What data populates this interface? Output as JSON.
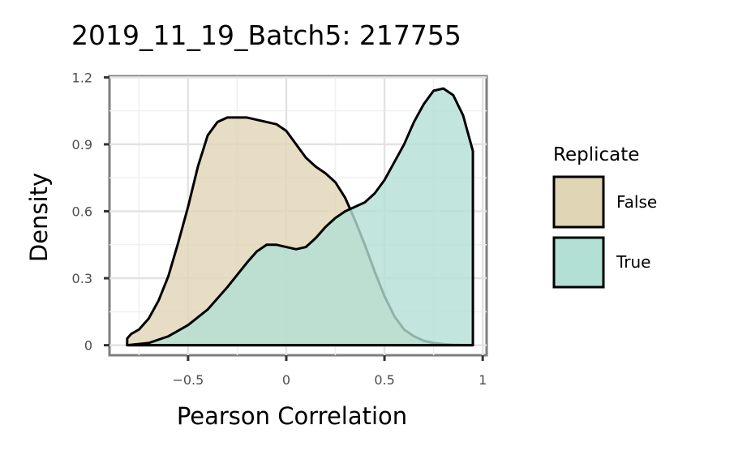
{
  "chart_data": {
    "type": "area",
    "title": "2019_11_19_Batch5: 217755",
    "xlabel": "Pearson Correlation",
    "ylabel": "Density",
    "xlim": [
      -0.9,
      1.02
    ],
    "ylim": [
      -0.045,
      1.205
    ],
    "x_ticks": [
      -0.5,
      0,
      0.5,
      1
    ],
    "x_tick_labels": [
      "−0.5",
      "0",
      "0.5",
      "1"
    ],
    "y_ticks": [
      0,
      0.3,
      0.6,
      0.9,
      1.2
    ],
    "y_tick_labels": [
      "0",
      "0.3",
      "0.6",
      "0.9",
      "1.2"
    ],
    "grid": true,
    "legend": {
      "title": "Replicate",
      "position": "right"
    },
    "series": [
      {
        "name": "False",
        "color": "#e0d5b5",
        "x": [
          -0.81,
          -0.79,
          -0.75,
          -0.7,
          -0.65,
          -0.6,
          -0.55,
          -0.5,
          -0.45,
          -0.4,
          -0.35,
          -0.3,
          -0.25,
          -0.2,
          -0.15,
          -0.1,
          -0.05,
          0,
          0.05,
          0.1,
          0.15,
          0.2,
          0.25,
          0.3,
          0.35,
          0.4,
          0.45,
          0.5,
          0.55,
          0.6,
          0.65,
          0.7,
          0.75,
          0.8,
          0.85,
          0.9,
          0.95
        ],
        "values": [
          0.03,
          0.05,
          0.07,
          0.12,
          0.2,
          0.31,
          0.46,
          0.62,
          0.8,
          0.94,
          1.0,
          1.02,
          1.02,
          1.02,
          1.01,
          1.0,
          0.99,
          0.96,
          0.9,
          0.84,
          0.8,
          0.77,
          0.73,
          0.66,
          0.56,
          0.45,
          0.33,
          0.22,
          0.13,
          0.07,
          0.04,
          0.02,
          0.01,
          0.005,
          0.002,
          0.001,
          0.0
        ]
      },
      {
        "name": "True",
        "color": "#b3e0d5",
        "x": [
          -0.81,
          -0.7,
          -0.6,
          -0.5,
          -0.4,
          -0.3,
          -0.2,
          -0.15,
          -0.1,
          -0.05,
          0,
          0.05,
          0.1,
          0.15,
          0.2,
          0.25,
          0.3,
          0.35,
          0.4,
          0.45,
          0.5,
          0.55,
          0.6,
          0.65,
          0.7,
          0.75,
          0.8,
          0.85,
          0.9,
          0.95,
          0.95
        ],
        "values": [
          0.0,
          0.01,
          0.04,
          0.09,
          0.16,
          0.26,
          0.37,
          0.42,
          0.45,
          0.45,
          0.44,
          0.43,
          0.44,
          0.48,
          0.53,
          0.57,
          0.6,
          0.62,
          0.64,
          0.68,
          0.74,
          0.82,
          0.9,
          1.0,
          1.08,
          1.14,
          1.15,
          1.12,
          1.03,
          0.87,
          0.0
        ]
      }
    ]
  }
}
